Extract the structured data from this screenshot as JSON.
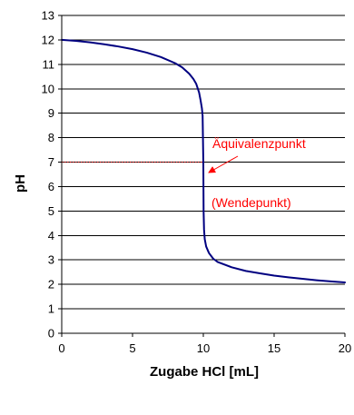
{
  "chart_data": {
    "type": "line",
    "xlabel": "Zugabe HCl [mL]",
    "ylabel": "pH",
    "xlim": [
      0,
      20
    ],
    "ylim": [
      0,
      13
    ],
    "x_ticks": [
      0,
      5,
      10,
      15,
      20
    ],
    "y_ticks": [
      0,
      1,
      2,
      3,
      4,
      5,
      6,
      7,
      8,
      9,
      10,
      11,
      12,
      13
    ],
    "grid": "horizontal",
    "legend": "none",
    "series": [
      {
        "color": "#000080",
        "x": [
          0,
          1,
          2,
          3,
          4,
          5,
          6,
          7,
          8,
          8.5,
          9,
          9.3,
          9.5,
          9.7,
          9.8,
          9.9,
          9.95,
          10.0,
          10.02,
          10.05,
          10.1,
          10.2,
          10.4,
          10.7,
          11,
          12,
          13,
          14,
          15,
          16,
          17,
          18,
          19,
          20
        ],
        "y": [
          12.0,
          11.96,
          11.9,
          11.82,
          11.73,
          11.62,
          11.48,
          11.3,
          11.05,
          10.88,
          10.62,
          10.4,
          10.2,
          9.85,
          9.55,
          9.2,
          8.9,
          7.0,
          5.0,
          4.25,
          3.85,
          3.55,
          3.28,
          3.05,
          2.92,
          2.7,
          2.55,
          2.45,
          2.36,
          2.29,
          2.23,
          2.17,
          2.12,
          2.08
        ]
      }
    ],
    "annotations": [
      {
        "text": "Äquivalenzpunkt",
        "color": "#ff0000",
        "arrow_to": [
          10,
          7
        ]
      },
      {
        "text": "(Wendepunkt)",
        "color": "#ff0000"
      }
    ],
    "reference_line": {
      "y": 7,
      "x_from": 0,
      "x_to": 10,
      "color": "#cc0000",
      "style": "dotted"
    }
  }
}
